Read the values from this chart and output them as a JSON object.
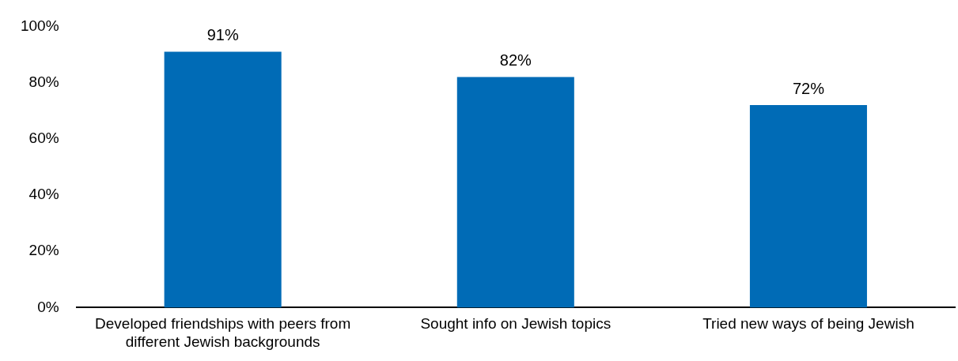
{
  "chart_data": {
    "type": "bar",
    "categories": [
      "Developed friendships with peers from different Jewish backgrounds",
      "Sought info on Jewish topics",
      "Tried new ways of being Jewish"
    ],
    "values": [
      91,
      82,
      72
    ],
    "color": "#006bb6",
    "value_labels": [
      "91%",
      "82%",
      "72%"
    ],
    "ylim": [
      0,
      100
    ],
    "yticks": [
      {
        "value": 0,
        "label": "0%"
      },
      {
        "value": 20,
        "label": "20%"
      },
      {
        "value": 40,
        "label": "40%"
      },
      {
        "value": 60,
        "label": "60%"
      },
      {
        "value": 80,
        "label": "80%"
      },
      {
        "value": 100,
        "label": "100%"
      }
    ],
    "grid": false,
    "legend": false
  }
}
